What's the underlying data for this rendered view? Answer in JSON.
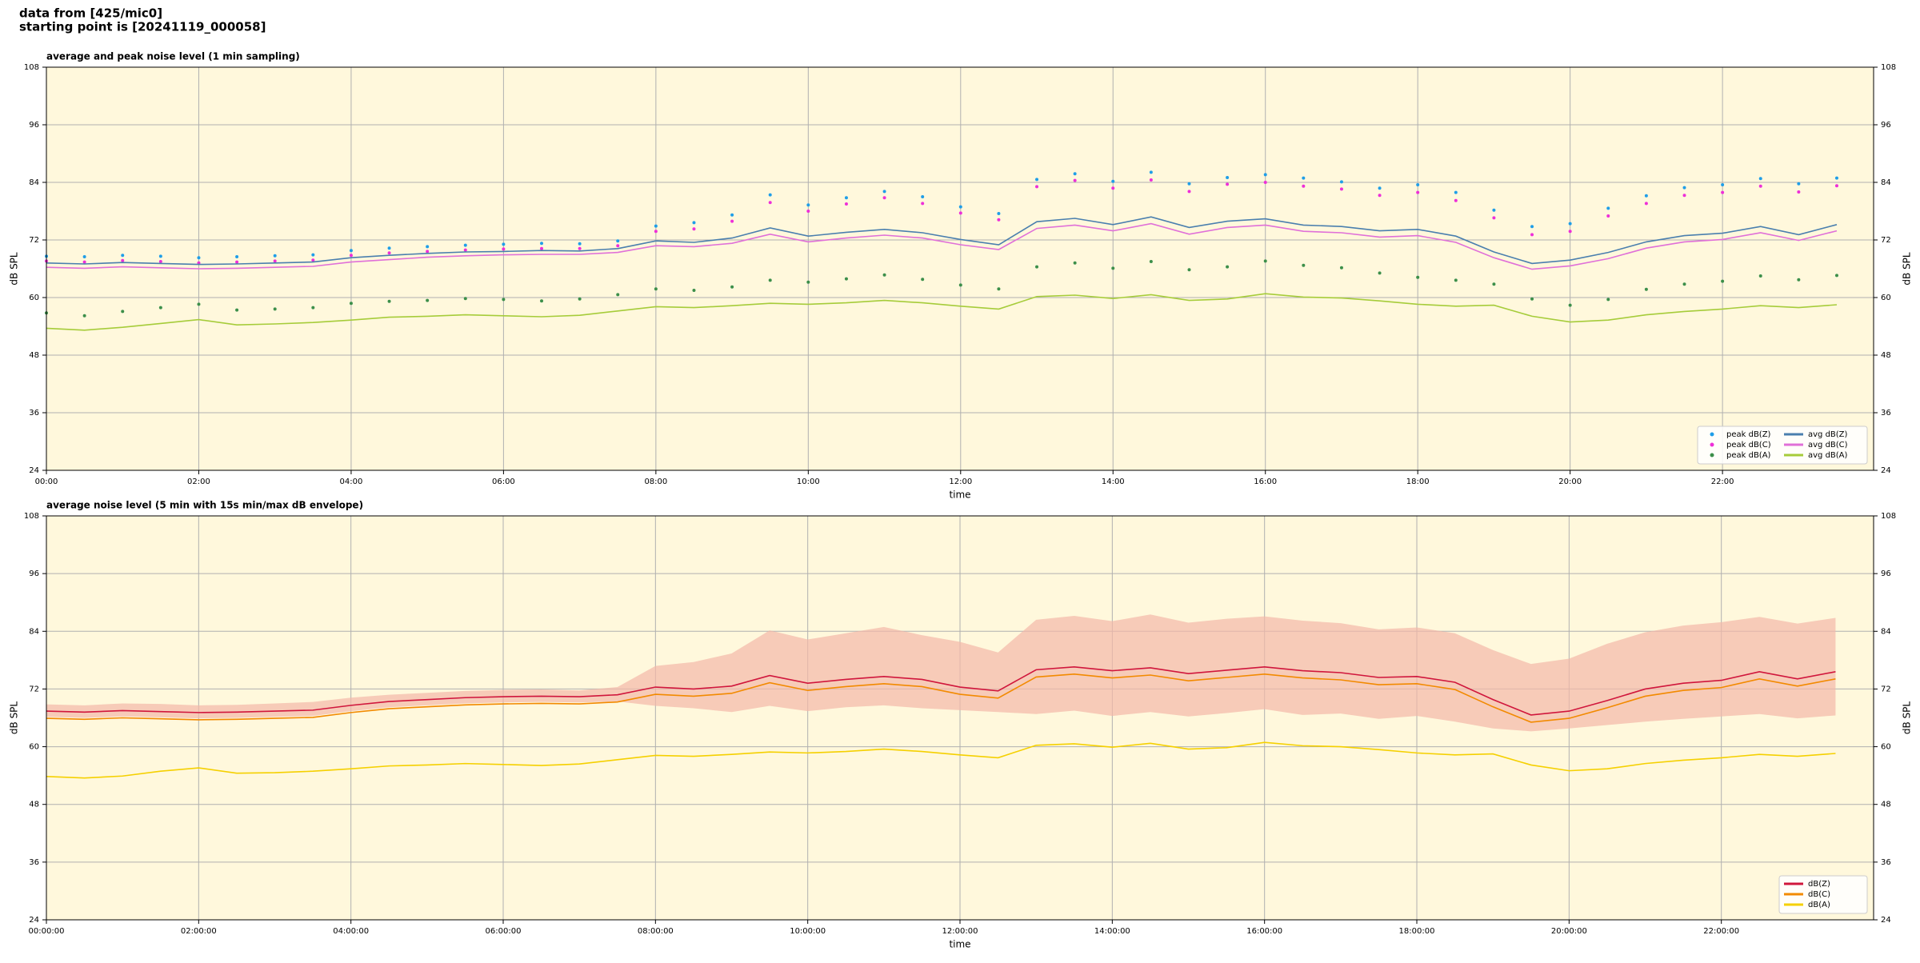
{
  "header": [
    "data from [425/mic0]",
    "starting point is [20241119_000058]"
  ],
  "chart_data": [
    {
      "type": "line",
      "title": "average and peak noise level (1 min sampling)",
      "xlabel": "time",
      "ylabel": "dB SPL",
      "xlim": [
        "00:00",
        "23:59"
      ],
      "ylim": [
        24,
        108
      ],
      "yticks": [
        24,
        36,
        48,
        60,
        72,
        84,
        96,
        108
      ],
      "xticks": [
        "00:00",
        "02:00",
        "04:00",
        "06:00",
        "08:00",
        "10:00",
        "12:00",
        "14:00",
        "16:00",
        "18:00",
        "20:00",
        "22:00"
      ],
      "grid": true,
      "background": "#fff8dc",
      "legend": "lower right",
      "legend_columns": 2,
      "x": [
        "00:00",
        "00:30",
        "01:00",
        "01:30",
        "02:00",
        "02:30",
        "03:00",
        "03:30",
        "04:00",
        "04:30",
        "05:00",
        "05:30",
        "06:00",
        "06:30",
        "07:00",
        "07:30",
        "08:00",
        "08:30",
        "09:00",
        "09:30",
        "10:00",
        "10:30",
        "11:00",
        "11:30",
        "12:00",
        "12:30",
        "13:00",
        "13:30",
        "14:00",
        "14:30",
        "15:00",
        "15:30",
        "16:00",
        "16:30",
        "17:00",
        "17:30",
        "18:00",
        "18:30",
        "19:00",
        "19:30",
        "20:00",
        "20:30",
        "21:00",
        "21:30",
        "22:00",
        "22:30",
        "23:00",
        "23:30"
      ],
      "series": [
        {
          "name": "peak dB(Z)",
          "type": "scatter",
          "color": "#1f9ee8",
          "values": [
            68.6,
            68.5,
            68.8,
            68.6,
            68.3,
            68.5,
            68.7,
            68.9,
            69.8,
            70.3,
            70.6,
            70.9,
            71.1,
            71.3,
            71.2,
            71.8,
            74.9,
            75.6,
            77.2,
            81.4,
            79.3,
            80.8,
            82.1,
            81.0,
            78.9,
            77.5,
            84.6,
            85.8,
            84.2,
            86.1,
            83.7,
            85.0,
            85.6,
            84.9,
            84.1,
            82.8,
            83.5,
            81.9,
            78.2,
            74.8,
            75.4,
            78.6,
            81.2,
            82.9,
            83.5,
            84.8,
            83.7,
            84.9
          ]
        },
        {
          "name": "peak dB(C)",
          "type": "scatter",
          "color": "#ee2fd8",
          "values": [
            67.6,
            67.4,
            67.7,
            67.5,
            67.2,
            67.4,
            67.6,
            67.8,
            68.8,
            69.3,
            69.6,
            69.9,
            70.1,
            70.2,
            70.2,
            70.8,
            73.8,
            74.3,
            75.9,
            79.8,
            78.0,
            79.5,
            80.8,
            79.6,
            77.6,
            76.2,
            83.1,
            84.4,
            82.8,
            84.5,
            82.1,
            83.6,
            84.0,
            83.2,
            82.6,
            81.3,
            81.9,
            80.2,
            76.6,
            73.1,
            73.8,
            77.0,
            79.6,
            81.3,
            81.9,
            83.2,
            82.0,
            83.3
          ]
        },
        {
          "name": "peak dB(A)",
          "type": "scatter",
          "color": "#3c8f4a",
          "values": [
            56.8,
            56.2,
            57.1,
            57.9,
            58.6,
            57.4,
            57.6,
            57.9,
            58.8,
            59.2,
            59.4,
            59.8,
            59.6,
            59.3,
            59.7,
            60.6,
            61.8,
            61.5,
            62.2,
            63.6,
            63.2,
            63.9,
            64.7,
            63.8,
            62.6,
            61.8,
            66.4,
            67.2,
            66.1,
            67.5,
            65.8,
            66.4,
            67.6,
            66.7,
            66.2,
            65.1,
            64.2,
            63.6,
            62.8,
            59.7,
            58.4,
            59.6,
            61.7,
            62.8,
            63.4,
            64.5,
            63.7,
            64.6
          ]
        },
        {
          "name": "avg dB(Z)",
          "type": "line",
          "color": "#4a7fae",
          "values": [
            67.2,
            67.0,
            67.3,
            67.1,
            66.9,
            67.0,
            67.2,
            67.4,
            68.3,
            68.8,
            69.2,
            69.5,
            69.6,
            69.8,
            69.7,
            70.2,
            71.8,
            71.5,
            72.4,
            74.5,
            72.8,
            73.6,
            74.2,
            73.5,
            72.1,
            71.0,
            75.8,
            76.5,
            75.2,
            76.8,
            74.6,
            75.9,
            76.4,
            75.1,
            74.8,
            73.9,
            74.2,
            72.8,
            69.5,
            67.1,
            67.8,
            69.4,
            71.6,
            72.9,
            73.4,
            74.8,
            73.1,
            75.2
          ]
        },
        {
          "name": "avg dB(C)",
          "type": "line",
          "color": "#e070d8",
          "values": [
            66.3,
            66.1,
            66.4,
            66.2,
            66.0,
            66.1,
            66.3,
            66.5,
            67.4,
            67.9,
            68.4,
            68.7,
            68.9,
            69.0,
            69.0,
            69.4,
            70.8,
            70.6,
            71.3,
            73.2,
            71.6,
            72.4,
            73.0,
            72.4,
            71.0,
            70.0,
            74.4,
            75.1,
            73.9,
            75.4,
            73.2,
            74.6,
            75.1,
            73.8,
            73.5,
            72.6,
            72.9,
            71.5,
            68.3,
            65.9,
            66.6,
            68.1,
            70.3,
            71.6,
            72.1,
            73.5,
            71.9,
            73.9
          ]
        },
        {
          "name": "avg dB(A)",
          "type": "line",
          "color": "#a6cc3a",
          "values": [
            53.6,
            53.2,
            53.8,
            54.6,
            55.4,
            54.3,
            54.5,
            54.8,
            55.3,
            55.9,
            56.1,
            56.4,
            56.2,
            56.0,
            56.3,
            57.2,
            58.1,
            57.9,
            58.3,
            58.8,
            58.6,
            58.9,
            59.4,
            58.9,
            58.2,
            57.6,
            60.2,
            60.5,
            59.8,
            60.6,
            59.4,
            59.7,
            60.8,
            60.1,
            59.9,
            59.3,
            58.6,
            58.2,
            58.4,
            56.1,
            54.9,
            55.3,
            56.4,
            57.1,
            57.6,
            58.3,
            57.9,
            58.5
          ]
        }
      ]
    },
    {
      "type": "line",
      "title": "average noise level (5 min with 15s min/max dB envelope)",
      "xlabel": "time",
      "ylabel": "dB SPL",
      "xlim": [
        "00:00:00",
        "23:59:59"
      ],
      "ylim": [
        24,
        108
      ],
      "yticks": [
        24,
        36,
        48,
        60,
        72,
        84,
        96,
        108
      ],
      "xticks": [
        "00:00:00",
        "02:00:00",
        "04:00:00",
        "06:00:00",
        "08:00:00",
        "10:00:00",
        "12:00:00",
        "14:00:00",
        "16:00:00",
        "18:00:00",
        "20:00:00",
        "22:00:00"
      ],
      "grid": true,
      "background": "#fff8dc",
      "legend": "lower right",
      "legend_columns": 1,
      "x": [
        "00:00:00",
        "00:30:00",
        "01:00:00",
        "01:30:00",
        "02:00:00",
        "02:30:00",
        "03:00:00",
        "03:30:00",
        "04:00:00",
        "04:30:00",
        "05:00:00",
        "05:30:00",
        "06:00:00",
        "06:30:00",
        "07:00:00",
        "07:30:00",
        "08:00:00",
        "08:30:00",
        "09:00:00",
        "09:30:00",
        "10:00:00",
        "10:30:00",
        "11:00:00",
        "11:30:00",
        "12:00:00",
        "12:30:00",
        "13:00:00",
        "13:30:00",
        "14:00:00",
        "14:30:00",
        "15:00:00",
        "15:30:00",
        "16:00:00",
        "16:30:00",
        "17:00:00",
        "17:30:00",
        "18:00:00",
        "18:30:00",
        "19:00:00",
        "19:30:00",
        "20:00:00",
        "20:30:00",
        "21:00:00",
        "21:30:00",
        "22:00:00",
        "22:30:00",
        "23:00:00",
        "23:30:00"
      ],
      "envelope": {
        "color": "#f4b8a8",
        "lower": [
          66.2,
          66.0,
          66.3,
          66.1,
          65.9,
          66.0,
          66.2,
          66.4,
          67.4,
          68.2,
          68.6,
          69.0,
          69.2,
          69.3,
          69.2,
          69.4,
          68.5,
          68.0,
          67.2,
          68.5,
          67.4,
          68.2,
          68.6,
          68.0,
          67.6,
          67.2,
          66.8,
          67.5,
          66.4,
          67.2,
          66.3,
          67.0,
          67.8,
          66.6,
          66.9,
          65.8,
          66.4,
          65.2,
          63.8,
          63.2,
          63.8,
          64.5,
          65.2,
          65.8,
          66.3,
          66.8,
          65.9,
          66.5
        ],
        "upper": [
          68.8,
          68.6,
          69.0,
          68.9,
          68.6,
          68.7,
          69.0,
          69.3,
          70.2,
          70.8,
          71.2,
          71.6,
          71.8,
          71.9,
          71.7,
          72.4,
          76.8,
          77.6,
          79.4,
          84.2,
          82.3,
          83.6,
          84.9,
          83.2,
          81.8,
          79.6,
          86.4,
          87.2,
          86.1,
          87.5,
          85.8,
          86.6,
          87.1,
          86.2,
          85.7,
          84.4,
          84.8,
          83.6,
          80.1,
          77.2,
          78.3,
          81.4,
          83.8,
          85.2,
          85.9,
          87.0,
          85.6,
          86.8
        ]
      },
      "series": [
        {
          "name": "dB(Z)",
          "type": "line",
          "color": "#d0163c",
          "values": [
            67.4,
            67.2,
            67.5,
            67.3,
            67.1,
            67.2,
            67.4,
            67.6,
            68.6,
            69.4,
            69.8,
            70.2,
            70.4,
            70.5,
            70.4,
            70.8,
            72.4,
            72.0,
            72.6,
            74.8,
            73.2,
            74.0,
            74.6,
            74.0,
            72.4,
            71.6,
            76.0,
            76.6,
            75.8,
            76.4,
            75.2,
            75.9,
            76.6,
            75.8,
            75.4,
            74.4,
            74.6,
            73.4,
            69.8,
            66.6,
            67.4,
            69.6,
            72.0,
            73.2,
            73.8,
            75.6,
            74.1,
            75.6
          ]
        },
        {
          "name": "dB(C)",
          "type": "line",
          "color": "#f28a00",
          "values": [
            65.9,
            65.7,
            66.0,
            65.8,
            65.6,
            65.7,
            65.9,
            66.1,
            67.1,
            67.9,
            68.3,
            68.7,
            68.9,
            69.0,
            68.9,
            69.3,
            70.9,
            70.5,
            71.1,
            73.3,
            71.7,
            72.5,
            73.1,
            72.5,
            70.9,
            70.1,
            74.5,
            75.1,
            74.3,
            74.9,
            73.7,
            74.4,
            75.1,
            74.3,
            73.9,
            72.9,
            73.1,
            71.9,
            68.3,
            65.1,
            65.9,
            68.1,
            70.5,
            71.7,
            72.3,
            74.1,
            72.6,
            74.1
          ]
        },
        {
          "name": "dB(A)",
          "type": "line",
          "color": "#f5d000",
          "values": [
            53.8,
            53.5,
            53.9,
            54.9,
            55.6,
            54.5,
            54.6,
            54.9,
            55.4,
            56.0,
            56.2,
            56.5,
            56.3,
            56.1,
            56.4,
            57.3,
            58.2,
            58.0,
            58.4,
            58.9,
            58.7,
            59.0,
            59.5,
            59.0,
            58.3,
            57.7,
            60.3,
            60.6,
            59.9,
            60.7,
            59.5,
            59.8,
            60.9,
            60.2,
            60.0,
            59.4,
            58.7,
            58.3,
            58.5,
            56.2,
            55.0,
            55.4,
            56.5,
            57.2,
            57.7,
            58.4,
            58.0,
            58.6
          ]
        }
      ]
    }
  ]
}
